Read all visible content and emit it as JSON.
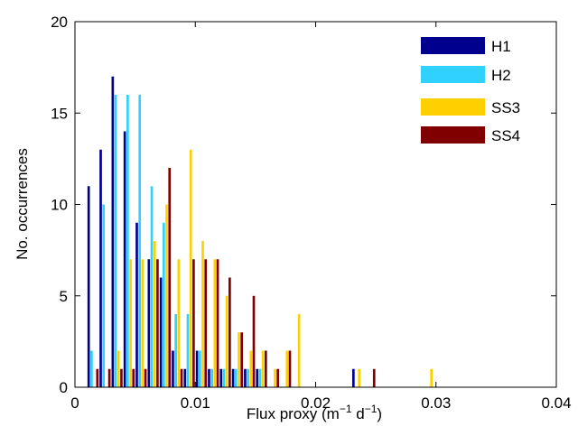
{
  "chart_data": {
    "type": "bar",
    "xlabel": "Flux proxy (m",
    "xlabel_sup1": "−1",
    "xlabel_mid": " d",
    "xlabel_sup2": "−1",
    "xlabel_end": ")",
    "ylabel": "No. occurrences",
    "xlim": [
      0,
      0.04
    ],
    "ylim": [
      0,
      20
    ],
    "xticks": [
      0,
      0.01,
      0.02,
      0.03,
      0.04
    ],
    "xtick_labels": [
      "0",
      "0.01",
      "0.02",
      "0.03",
      "0.04"
    ],
    "yticks": [
      0,
      5,
      10,
      15,
      20
    ],
    "ytick_labels": [
      "0",
      "5",
      "10",
      "15",
      "20"
    ],
    "legend_position": "top-right",
    "bin_centers": [
      0.0015,
      0.0025,
      0.0035,
      0.0045,
      0.0055,
      0.0065,
      0.0075,
      0.0085,
      0.0095,
      0.0105,
      0.0115,
      0.0125,
      0.0135,
      0.0145,
      0.0155,
      0.0165,
      0.0175,
      0.0185,
      0.0195,
      0.0205,
      0.0215,
      0.0225,
      0.0235,
      0.0245,
      0.0255,
      0.0265,
      0.0275,
      0.0285,
      0.0295,
      0.0305,
      0.0315,
      0.0325,
      0.0335,
      0.0345,
      0.0355,
      0.0365,
      0.0375,
      0.0385,
      0.0395
    ],
    "series": [
      {
        "name": "H1",
        "color": "#00008f",
        "values": [
          11,
          13,
          17,
          14,
          9,
          7,
          6,
          2,
          1,
          2,
          1,
          1,
          1,
          1,
          1,
          0,
          0,
          0,
          0,
          0,
          0,
          0,
          1,
          0,
          0,
          0,
          0,
          0,
          0,
          0,
          0,
          0,
          0,
          0,
          0,
          0,
          0,
          0,
          0
        ]
      },
      {
        "name": "H2",
        "color": "#30d0ff",
        "values": [
          2,
          10,
          16,
          16,
          16,
          11,
          9,
          4,
          4,
          2,
          1,
          1,
          1,
          1,
          1,
          0,
          0,
          0,
          0,
          0,
          0,
          0,
          0,
          0,
          0,
          0,
          0,
          0,
          0,
          0,
          0,
          0,
          0,
          0,
          0,
          0,
          0,
          0,
          0
        ]
      },
      {
        "name": "SS3",
        "color": "#ffd000",
        "values": [
          0,
          0,
          2,
          7,
          7,
          8,
          10,
          7,
          13,
          8,
          7,
          5,
          3,
          2,
          2,
          1,
          2,
          4,
          0,
          0,
          0,
          0,
          1,
          0,
          0,
          0,
          0,
          0,
          1,
          0,
          0,
          0,
          0,
          0,
          0,
          0,
          0,
          0,
          0
        ]
      },
      {
        "name": "SS4",
        "color": "#800000",
        "values": [
          1,
          1,
          1,
          1,
          1,
          7,
          12,
          1,
          7,
          7,
          7,
          6,
          3,
          5,
          2,
          1,
          2,
          0,
          0,
          0,
          0,
          0,
          0,
          1,
          0,
          0,
          0,
          0,
          0,
          0,
          0,
          0,
          0,
          0,
          0,
          0,
          0,
          0,
          0
        ]
      }
    ]
  }
}
